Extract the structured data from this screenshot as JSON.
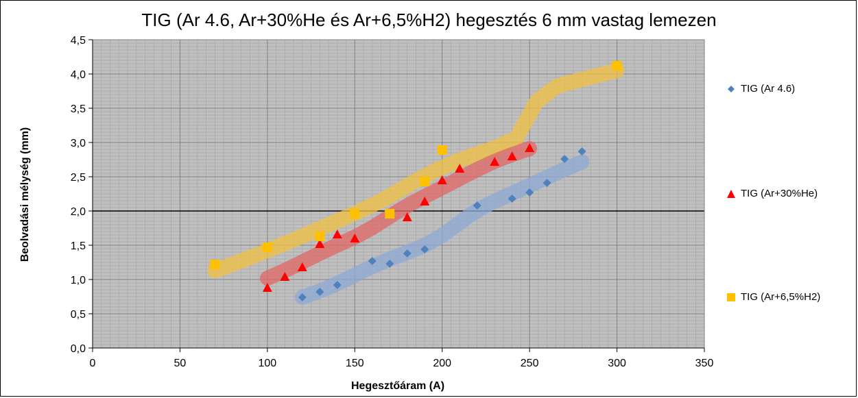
{
  "chart_data": {
    "type": "scatter",
    "title": "TIG (Ar 4.6, Ar+30%He és Ar+6,5%H2) hegesztés 6 mm vastag lemezen",
    "xlabel": "Hegesztőáram (A)",
    "ylabel": "Beolvadási mélység (mm)",
    "xlim": [
      0,
      350
    ],
    "ylim": [
      0,
      4.5
    ],
    "xticks": [
      "0",
      "50",
      "100",
      "150",
      "200",
      "250",
      "300",
      "350"
    ],
    "yticks": [
      "0,0",
      "0,5",
      "1,0",
      "1,5",
      "2,0",
      "2,5",
      "3,0",
      "3,5",
      "4,0",
      "4,5"
    ],
    "grid": true,
    "legend_position": "right",
    "plot_background": "#c0c0c0",
    "series": [
      {
        "name": "TIG (Ar 4.6)",
        "marker": "diamond",
        "color": "#4f81bd",
        "band_color": "#8eaad4",
        "points": [
          [
            120,
            0.74
          ],
          [
            130,
            0.82
          ],
          [
            140,
            0.92
          ],
          [
            160,
            1.27
          ],
          [
            170,
            1.23
          ],
          [
            180,
            1.38
          ],
          [
            190,
            1.44
          ],
          [
            220,
            2.08
          ],
          [
            240,
            2.18
          ],
          [
            250,
            2.27
          ],
          [
            260,
            2.41
          ],
          [
            270,
            2.76
          ],
          [
            280,
            2.87
          ]
        ]
      },
      {
        "name": "TIG (Ar+30%He)",
        "marker": "triangle",
        "color": "#ff0000",
        "band_color": "#e06666",
        "points": [
          [
            100,
            0.88
          ],
          [
            110,
            1.04
          ],
          [
            120,
            1.18
          ],
          [
            130,
            1.52
          ],
          [
            140,
            1.66
          ],
          [
            150,
            1.6
          ],
          [
            180,
            1.91
          ],
          [
            190,
            2.14
          ],
          [
            200,
            2.45
          ],
          [
            210,
            2.62
          ],
          [
            230,
            2.72
          ],
          [
            240,
            2.8
          ],
          [
            250,
            2.92
          ]
        ]
      },
      {
        "name": "TIG (Ar+6,5%H2)",
        "marker": "square",
        "color": "#ffc000",
        "band_color": "#f0c040",
        "points": [
          [
            70,
            1.22
          ],
          [
            100,
            1.47
          ],
          [
            130,
            1.63
          ],
          [
            150,
            1.96
          ],
          [
            170,
            1.96
          ],
          [
            190,
            2.43
          ],
          [
            200,
            2.89
          ],
          [
            300,
            4.12
          ]
        ]
      }
    ]
  }
}
